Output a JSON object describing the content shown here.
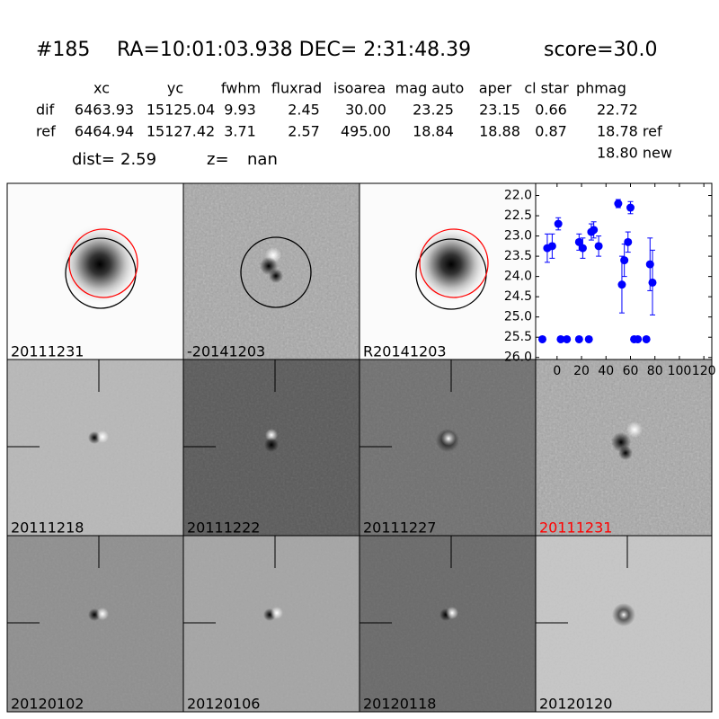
{
  "header": {
    "id": "#185",
    "coords": "RA=10:01:03.938 DEC= 2:31:48.39",
    "score": "score=30.0"
  },
  "table": {
    "columns": [
      "xc",
      "yc",
      "fwhm",
      "fluxrad",
      "isoarea",
      "mag auto",
      "aper",
      "cl star",
      "phmag"
    ],
    "rows": [
      [
        "dif",
        "6463.93",
        "15125.04",
        "9.93",
        "2.45",
        "30.00",
        "23.25",
        "23.15",
        "0.66",
        "22.72"
      ],
      [
        "ref",
        "6464.94",
        "15127.42",
        "3.71",
        "2.57",
        "495.00",
        "18.84",
        "18.88",
        "0.87",
        "18.78 ref"
      ]
    ],
    "extra": "18.80 new"
  },
  "summary": {
    "dist_label": "dist=",
    "dist": "2.59",
    "z_label": "z=",
    "z": "nan"
  },
  "panels": [
    {
      "label": "20111231"
    },
    {
      "label": "-20141203"
    },
    {
      "label": "R20141203"
    },
    {
      "label": "20111218"
    },
    {
      "label": "20111222"
    },
    {
      "label": "20111227"
    },
    {
      "label": "20111231",
      "color": "#ff0000"
    },
    {
      "label": "20120102"
    },
    {
      "label": "20120106"
    },
    {
      "label": "20120118"
    },
    {
      "label": "20120120"
    }
  ],
  "chart_data": {
    "type": "scatter",
    "color": "#0000ff",
    "x": [
      -12,
      -8,
      -4,
      1,
      3,
      8,
      18,
      21,
      18,
      26,
      28,
      30,
      34,
      50,
      53,
      55,
      58,
      60,
      63,
      66,
      73,
      76,
      78
    ],
    "values": [
      25.55,
      23.3,
      23.25,
      22.7,
      25.55,
      25.55,
      23.15,
      23.3,
      25.55,
      25.55,
      22.9,
      22.85,
      23.25,
      22.2,
      24.2,
      23.6,
      23.15,
      22.3,
      25.55,
      25.55,
      25.55,
      23.7,
      24.15
    ],
    "errors": [
      0.05,
      0.35,
      0.3,
      0.15,
      0.05,
      0.05,
      0.2,
      0.25,
      0.05,
      0.05,
      0.2,
      0.2,
      0.25,
      0.1,
      0.7,
      0.4,
      0.25,
      0.15,
      0.05,
      0.05,
      0.05,
      0.65,
      0.8
    ],
    "xlim": [
      -17.5,
      126.5
    ],
    "ylim": [
      26.05,
      21.7
    ],
    "xticks": [
      0,
      20,
      40,
      60,
      80,
      100,
      120
    ],
    "yticks": [
      {
        "value": 22,
        "label": "22.0"
      },
      {
        "value": 22.5,
        "label": "22.5"
      },
      {
        "value": 23,
        "label": "23.0"
      },
      {
        "value": 23.5,
        "label": "23.5"
      },
      {
        "value": 24,
        "label": "24.0"
      },
      {
        "value": 24.5,
        "label": "24.5"
      },
      {
        "value": 25,
        "label": "25.0"
      },
      {
        "value": 25.5,
        "label": "25.5"
      },
      {
        "value": 26,
        "label": "26.0"
      }
    ]
  }
}
